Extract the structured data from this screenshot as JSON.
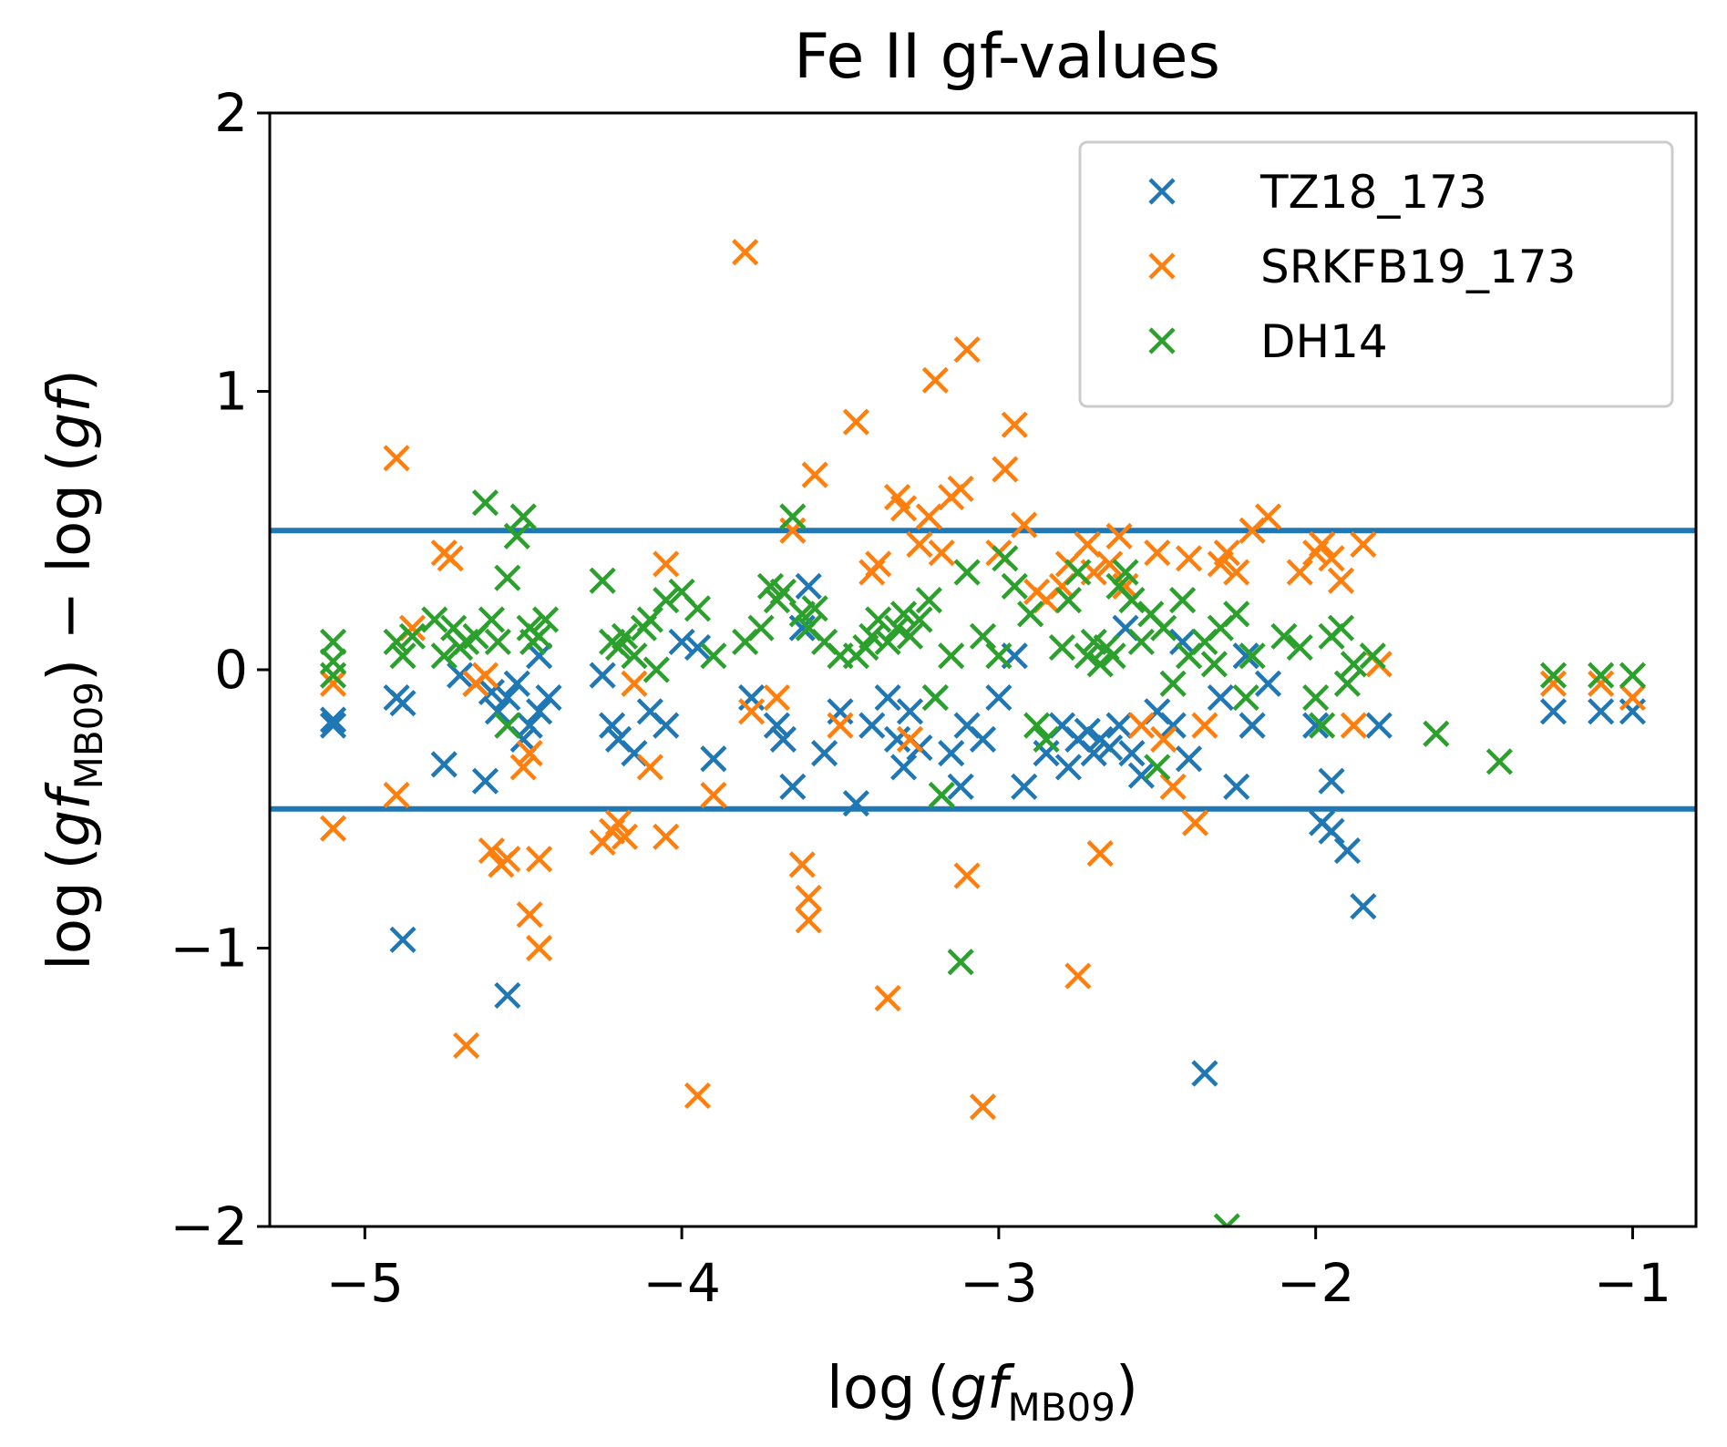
{
  "chart_data": {
    "type": "scatter",
    "title": "Fe II gf-values",
    "xlabel": {
      "prefix": "log (",
      "var": "gf",
      "sub": "MB09",
      "suffix": ")"
    },
    "ylabel": {
      "prefix": "log (",
      "var": "gf",
      "sub": "MB09",
      "mid": ") − log (",
      "var2": "gf",
      "suffix": ")"
    },
    "xlim": [
      -5.3,
      -0.8
    ],
    "ylim": [
      -2,
      2
    ],
    "xticks": [
      -5,
      -4,
      -3,
      -2,
      -1
    ],
    "yticks": [
      -2,
      -1,
      0,
      1,
      2
    ],
    "xtick_labels": [
      "−5",
      "−4",
      "−3",
      "−2",
      "−1"
    ],
    "ytick_labels": [
      "−2",
      "−1",
      "0",
      "1",
      "2"
    ],
    "hlines": [
      0.5,
      -0.5
    ],
    "hline_color": "#1f77b4",
    "legend_position": "upper right",
    "series": [
      {
        "name": "TZ18_173",
        "color": "#1f77b4",
        "points": [
          [
            -5.1,
            -0.18
          ],
          [
            -5.1,
            -0.2
          ],
          [
            -4.9,
            -0.1
          ],
          [
            -4.88,
            -0.12
          ],
          [
            -4.88,
            -0.97
          ],
          [
            -4.75,
            -0.34
          ],
          [
            -4.7,
            -0.02
          ],
          [
            -4.65,
            -0.05
          ],
          [
            -4.62,
            -0.4
          ],
          [
            -4.6,
            -0.08
          ],
          [
            -4.58,
            -0.15
          ],
          [
            -4.55,
            -0.1
          ],
          [
            -4.52,
            -0.05
          ],
          [
            -4.5,
            -0.25
          ],
          [
            -4.48,
            -0.2
          ],
          [
            -4.45,
            -0.15
          ],
          [
            -4.42,
            -0.1
          ],
          [
            -4.55,
            -1.17
          ],
          [
            -4.45,
            0.05
          ],
          [
            -4.25,
            -0.02
          ],
          [
            -4.22,
            -0.2
          ],
          [
            -4.2,
            -0.25
          ],
          [
            -4.15,
            -0.3
          ],
          [
            -4.1,
            -0.15
          ],
          [
            -4.05,
            -0.2
          ],
          [
            -4.0,
            0.1
          ],
          [
            -3.95,
            0.08
          ],
          [
            -3.9,
            -0.32
          ],
          [
            -3.78,
            -0.1
          ],
          [
            -3.7,
            -0.2
          ],
          [
            -3.68,
            -0.25
          ],
          [
            -3.65,
            -0.42
          ],
          [
            -3.62,
            0.15
          ],
          [
            -3.6,
            0.3
          ],
          [
            -3.55,
            -0.3
          ],
          [
            -3.5,
            -0.15
          ],
          [
            -3.45,
            -0.48
          ],
          [
            -3.4,
            -0.2
          ],
          [
            -3.35,
            -0.1
          ],
          [
            -3.32,
            -0.25
          ],
          [
            -3.3,
            -0.35
          ],
          [
            -3.28,
            -0.15
          ],
          [
            -3.25,
            -0.28
          ],
          [
            -3.2,
            -0.1
          ],
          [
            -3.15,
            -0.3
          ],
          [
            -3.12,
            -0.42
          ],
          [
            -3.1,
            -0.2
          ],
          [
            -3.05,
            -0.25
          ],
          [
            -3.0,
            -0.1
          ],
          [
            -2.95,
            0.05
          ],
          [
            -2.92,
            -0.42
          ],
          [
            -2.85,
            -0.3
          ],
          [
            -2.8,
            -0.2
          ],
          [
            -2.78,
            -0.35
          ],
          [
            -2.75,
            -0.25
          ],
          [
            -2.72,
            -0.22
          ],
          [
            -2.7,
            -0.3
          ],
          [
            -2.68,
            -0.25
          ],
          [
            -2.65,
            -0.28
          ],
          [
            -2.62,
            -0.2
          ],
          [
            -2.6,
            0.15
          ],
          [
            -2.58,
            -0.3
          ],
          [
            -2.55,
            -0.38
          ],
          [
            -2.5,
            -0.15
          ],
          [
            -2.45,
            -0.2
          ],
          [
            -2.42,
            0.1
          ],
          [
            -2.4,
            -0.32
          ],
          [
            -2.35,
            -1.45
          ],
          [
            -2.3,
            -0.1
          ],
          [
            -2.25,
            -0.42
          ],
          [
            -2.22,
            0.05
          ],
          [
            -2.2,
            -0.2
          ],
          [
            -2.15,
            -0.05
          ],
          [
            -2.0,
            -0.2
          ],
          [
            -1.98,
            -0.55
          ],
          [
            -1.95,
            -0.58
          ],
          [
            -1.95,
            -0.4
          ],
          [
            -1.9,
            -0.65
          ],
          [
            -1.85,
            -0.85
          ],
          [
            -1.8,
            -0.2
          ],
          [
            -1.25,
            -0.15
          ],
          [
            -1.1,
            -0.15
          ],
          [
            -1.0,
            -0.15
          ]
        ]
      },
      {
        "name": "SRKFB19_173",
        "color": "#ff7f0e",
        "points": [
          [
            -5.1,
            -0.05
          ],
          [
            -5.1,
            -0.57
          ],
          [
            -4.9,
            0.76
          ],
          [
            -4.9,
            -0.45
          ],
          [
            -4.85,
            0.15
          ],
          [
            -4.75,
            0.42
          ],
          [
            -4.73,
            0.4
          ],
          [
            -4.68,
            -1.35
          ],
          [
            -4.65,
            -0.05
          ],
          [
            -4.62,
            -0.02
          ],
          [
            -4.6,
            -0.65
          ],
          [
            -4.57,
            -0.7
          ],
          [
            -4.55,
            -0.68
          ],
          [
            -4.5,
            -0.35
          ],
          [
            -4.48,
            -0.3
          ],
          [
            -4.45,
            -0.68
          ],
          [
            -4.48,
            -0.88
          ],
          [
            -4.45,
            -1.0
          ],
          [
            -4.25,
            -0.62
          ],
          [
            -4.22,
            -0.58
          ],
          [
            -4.2,
            -0.55
          ],
          [
            -4.18,
            -0.6
          ],
          [
            -4.15,
            -0.05
          ],
          [
            -4.1,
            -0.35
          ],
          [
            -4.05,
            -0.6
          ],
          [
            -4.05,
            0.38
          ],
          [
            -3.95,
            -1.53
          ],
          [
            -3.9,
            -0.45
          ],
          [
            -3.8,
            1.5
          ],
          [
            -3.78,
            -0.15
          ],
          [
            -3.7,
            -0.1
          ],
          [
            -3.65,
            0.5
          ],
          [
            -3.62,
            -0.7
          ],
          [
            -3.6,
            -0.9
          ],
          [
            -3.6,
            -0.82
          ],
          [
            -3.58,
            0.7
          ],
          [
            -3.5,
            -0.2
          ],
          [
            -3.45,
            0.89
          ],
          [
            -3.4,
            0.35
          ],
          [
            -3.38,
            0.38
          ],
          [
            -3.35,
            -1.18
          ],
          [
            -3.32,
            0.62
          ],
          [
            -3.3,
            0.58
          ],
          [
            -3.28,
            -0.25
          ],
          [
            -3.25,
            0.45
          ],
          [
            -3.22,
            0.55
          ],
          [
            -3.2,
            1.04
          ],
          [
            -3.18,
            0.42
          ],
          [
            -3.15,
            0.62
          ],
          [
            -3.12,
            0.65
          ],
          [
            -3.1,
            1.15
          ],
          [
            -3.1,
            -0.74
          ],
          [
            -3.05,
            -1.57
          ],
          [
            -3.0,
            0.42
          ],
          [
            -2.98,
            0.72
          ],
          [
            -2.95,
            0.88
          ],
          [
            -2.92,
            0.52
          ],
          [
            -2.88,
            0.28
          ],
          [
            -2.85,
            0.25
          ],
          [
            -2.8,
            0.3
          ],
          [
            -2.78,
            0.38
          ],
          [
            -2.75,
            -1.1
          ],
          [
            -2.72,
            0.45
          ],
          [
            -2.7,
            0.35
          ],
          [
            -2.68,
            -0.66
          ],
          [
            -2.65,
            0.38
          ],
          [
            -2.62,
            0.48
          ],
          [
            -2.6,
            0.3
          ],
          [
            -2.55,
            -0.2
          ],
          [
            -2.5,
            0.42
          ],
          [
            -2.48,
            -0.25
          ],
          [
            -2.45,
            -0.42
          ],
          [
            -2.4,
            0.4
          ],
          [
            -2.38,
            -0.55
          ],
          [
            -2.35,
            -0.2
          ],
          [
            -2.3,
            0.38
          ],
          [
            -2.28,
            0.42
          ],
          [
            -2.25,
            0.35
          ],
          [
            -2.2,
            0.5
          ],
          [
            -2.15,
            0.55
          ],
          [
            -2.05,
            0.35
          ],
          [
            -2.0,
            0.42
          ],
          [
            -1.98,
            0.45
          ],
          [
            -1.95,
            0.4
          ],
          [
            -1.92,
            0.32
          ],
          [
            -1.88,
            -0.2
          ],
          [
            -1.85,
            0.45
          ],
          [
            -1.8,
            0.02
          ],
          [
            -1.25,
            -0.05
          ],
          [
            -1.1,
            -0.05
          ],
          [
            -1.0,
            -0.1
          ]
        ]
      },
      {
        "name": "DH14",
        "color": "#2ca02c",
        "points": [
          [
            -5.1,
            0.1
          ],
          [
            -5.1,
            0.03
          ],
          [
            -5.1,
            -0.02
          ],
          [
            -4.9,
            0.1
          ],
          [
            -4.88,
            0.05
          ],
          [
            -4.85,
            0.12
          ],
          [
            -4.78,
            0.18
          ],
          [
            -4.75,
            0.05
          ],
          [
            -4.72,
            0.15
          ],
          [
            -4.7,
            0.08
          ],
          [
            -4.68,
            0.1
          ],
          [
            -4.65,
            0.12
          ],
          [
            -4.62,
            0.6
          ],
          [
            -4.6,
            0.18
          ],
          [
            -4.58,
            0.1
          ],
          [
            -4.55,
            0.33
          ],
          [
            -4.52,
            0.48
          ],
          [
            -4.5,
            0.55
          ],
          [
            -4.48,
            0.15
          ],
          [
            -4.47,
            0.1
          ],
          [
            -4.45,
            0.12
          ],
          [
            -4.43,
            0.18
          ],
          [
            -4.55,
            -0.2
          ],
          [
            -4.25,
            0.32
          ],
          [
            -4.22,
            0.1
          ],
          [
            -4.2,
            0.08
          ],
          [
            -4.18,
            0.12
          ],
          [
            -4.15,
            0.05
          ],
          [
            -4.12,
            0.15
          ],
          [
            -4.1,
            0.18
          ],
          [
            -4.08,
            0.0
          ],
          [
            -4.05,
            0.25
          ],
          [
            -4.0,
            0.28
          ],
          [
            -3.95,
            0.22
          ],
          [
            -3.9,
            0.05
          ],
          [
            -3.8,
            0.1
          ],
          [
            -3.75,
            0.15
          ],
          [
            -3.72,
            0.3
          ],
          [
            -3.7,
            0.25
          ],
          [
            -3.68,
            0.28
          ],
          [
            -3.65,
            0.55
          ],
          [
            -3.62,
            0.2
          ],
          [
            -3.6,
            0.15
          ],
          [
            -3.58,
            0.22
          ],
          [
            -3.55,
            0.1
          ],
          [
            -3.5,
            0.05
          ],
          [
            -3.45,
            0.05
          ],
          [
            -3.42,
            0.08
          ],
          [
            -3.4,
            0.12
          ],
          [
            -3.38,
            0.18
          ],
          [
            -3.35,
            0.1
          ],
          [
            -3.32,
            0.15
          ],
          [
            -3.3,
            0.2
          ],
          [
            -3.28,
            0.12
          ],
          [
            -3.25,
            0.18
          ],
          [
            -3.22,
            0.25
          ],
          [
            -3.2,
            -0.1
          ],
          [
            -3.18,
            -0.45
          ],
          [
            -3.15,
            0.05
          ],
          [
            -3.12,
            -1.05
          ],
          [
            -3.1,
            0.35
          ],
          [
            -3.05,
            0.12
          ],
          [
            -3.0,
            0.05
          ],
          [
            -2.98,
            0.4
          ],
          [
            -2.95,
            0.3
          ],
          [
            -2.9,
            0.2
          ],
          [
            -2.88,
            -0.2
          ],
          [
            -2.85,
            -0.25
          ],
          [
            -2.8,
            0.08
          ],
          [
            -2.78,
            0.25
          ],
          [
            -2.75,
            0.35
          ],
          [
            -2.72,
            0.05
          ],
          [
            -2.7,
            0.1
          ],
          [
            -2.68,
            0.02
          ],
          [
            -2.66,
            0.08
          ],
          [
            -2.64,
            0.05
          ],
          [
            -2.62,
            0.3
          ],
          [
            -2.6,
            0.35
          ],
          [
            -2.58,
            0.25
          ],
          [
            -2.55,
            0.1
          ],
          [
            -2.52,
            0.2
          ],
          [
            -2.5,
            -0.35
          ],
          [
            -2.48,
            0.15
          ],
          [
            -2.45,
            -0.05
          ],
          [
            -2.42,
            0.25
          ],
          [
            -2.4,
            0.05
          ],
          [
            -2.35,
            0.1
          ],
          [
            -2.32,
            0.02
          ],
          [
            -2.3,
            0.15
          ],
          [
            -2.28,
            -2.0
          ],
          [
            -2.25,
            0.2
          ],
          [
            -2.22,
            -0.1
          ],
          [
            -2.2,
            0.05
          ],
          [
            -2.1,
            0.12
          ],
          [
            -2.05,
            0.08
          ],
          [
            -2.0,
            -0.1
          ],
          [
            -1.98,
            -0.2
          ],
          [
            -1.95,
            0.12
          ],
          [
            -1.92,
            0.15
          ],
          [
            -1.9,
            -0.05
          ],
          [
            -1.88,
            0.02
          ],
          [
            -1.82,
            0.05
          ],
          [
            -1.62,
            -0.23
          ],
          [
            -1.42,
            -0.33
          ],
          [
            -1.25,
            -0.02
          ],
          [
            -1.1,
            -0.02
          ],
          [
            -1.0,
            -0.02
          ]
        ]
      }
    ]
  }
}
